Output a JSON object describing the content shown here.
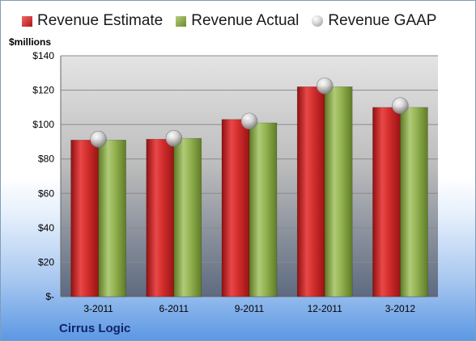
{
  "chart_data": {
    "type": "bar",
    "categories": [
      "3-2011",
      "6-2011",
      "9-2011",
      "12-2011",
      "3-2012"
    ],
    "series": [
      {
        "name": "Revenue Estimate",
        "values": [
          91,
          91.5,
          103,
          122,
          110
        ],
        "color": "#c42a2a"
      },
      {
        "name": "Revenue Actual",
        "values": [
          91,
          92,
          101,
          122,
          110
        ],
        "color": "#8aab45"
      }
    ],
    "gaap": {
      "name": "Revenue GAAP",
      "values": [
        91.5,
        92,
        102,
        122.5,
        111
      ],
      "color": "#b5b5b5"
    },
    "ylabel": "$millions",
    "ylim": [
      0,
      140
    ],
    "yticks": [
      0,
      20,
      40,
      60,
      80,
      100,
      120,
      140
    ],
    "ytick_labels": [
      "$-",
      "$20",
      "$40",
      "$60",
      "$80",
      "$100",
      "$120",
      "$140"
    ],
    "grid": true,
    "legend_position": "top"
  },
  "footer": {
    "company": "Cirrus Logic"
  }
}
